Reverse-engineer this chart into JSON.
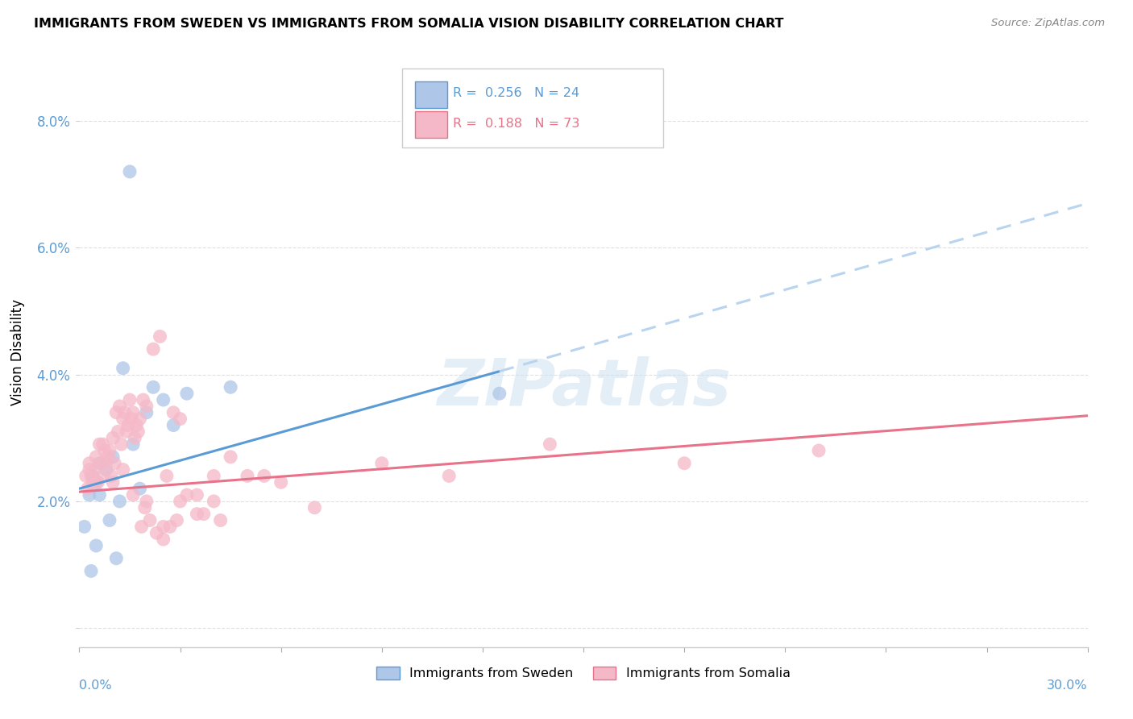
{
  "title": "IMMIGRANTS FROM SWEDEN VS IMMIGRANTS FROM SOMALIA VISION DISABILITY CORRELATION CHART",
  "source": "Source: ZipAtlas.com",
  "ylabel": "Vision Disability",
  "xlim": [
    0.0,
    30.0
  ],
  "ylim": [
    -0.3,
    9.0
  ],
  "yticks": [
    0.0,
    2.0,
    4.0,
    6.0,
    8.0
  ],
  "background_color": "#ffffff",
  "grid_color": "#e0e0e0",
  "sweden_color": "#aec6e8",
  "somalia_color": "#f5b8c8",
  "sweden_line_color": "#5b9bd5",
  "somalia_line_color": "#e8728a",
  "trend_dashed_color": "#b8d4ee",
  "watermark": "ZIPatlas",
  "sweden_x": [
    1.5,
    2.2,
    3.2,
    2.0,
    1.3,
    0.6,
    0.4,
    0.3,
    0.5,
    0.8,
    1.0,
    1.2,
    1.8,
    2.5,
    2.8,
    4.5,
    12.5,
    0.15,
    0.35,
    0.6,
    0.9,
    1.6,
    0.5,
    1.1
  ],
  "sweden_y": [
    7.2,
    3.8,
    3.7,
    3.4,
    4.1,
    2.6,
    2.4,
    2.1,
    2.3,
    2.5,
    2.7,
    2.0,
    2.2,
    3.6,
    3.2,
    3.8,
    3.7,
    1.6,
    0.9,
    2.1,
    1.7,
    2.9,
    1.3,
    1.1
  ],
  "somalia_x": [
    0.2,
    0.3,
    0.4,
    0.5,
    0.6,
    0.7,
    0.8,
    0.9,
    1.0,
    1.1,
    1.2,
    1.3,
    1.4,
    1.5,
    1.6,
    1.7,
    1.8,
    1.9,
    2.0,
    2.2,
    2.4,
    2.6,
    2.8,
    3.0,
    3.5,
    4.0,
    4.5,
    5.5,
    7.0,
    9.0,
    11.0,
    14.0,
    18.0,
    22.0,
    0.25,
    0.35,
    0.45,
    0.55,
    0.65,
    0.75,
    0.85,
    0.95,
    1.05,
    1.15,
    1.25,
    1.35,
    1.45,
    1.55,
    1.65,
    1.75,
    1.85,
    1.95,
    2.1,
    2.3,
    2.5,
    2.7,
    2.9,
    3.2,
    3.7,
    4.2,
    0.3,
    0.5,
    0.7,
    1.0,
    1.3,
    1.6,
    2.0,
    2.5,
    3.0,
    3.5,
    4.0,
    5.0,
    6.0
  ],
  "somalia_y": [
    2.4,
    2.6,
    2.3,
    2.7,
    2.9,
    2.4,
    2.6,
    2.8,
    2.3,
    3.4,
    3.5,
    3.3,
    3.1,
    3.6,
    3.4,
    3.2,
    3.3,
    3.6,
    3.5,
    4.4,
    4.6,
    2.4,
    3.4,
    3.3,
    2.1,
    2.4,
    2.7,
    2.4,
    1.9,
    2.6,
    2.4,
    2.9,
    2.6,
    2.8,
    2.2,
    2.4,
    2.5,
    2.3,
    2.6,
    2.8,
    2.7,
    2.4,
    2.6,
    3.1,
    2.9,
    3.4,
    3.2,
    3.3,
    3.0,
    3.1,
    1.6,
    1.9,
    1.7,
    1.5,
    1.4,
    1.6,
    1.7,
    2.1,
    1.8,
    1.7,
    2.5,
    2.3,
    2.9,
    3.0,
    2.5,
    2.1,
    2.0,
    1.6,
    2.0,
    1.8,
    2.0,
    2.4,
    2.3
  ],
  "legend_r1": "0.256",
  "legend_n1": "24",
  "legend_r2": "0.188",
  "legend_n2": "73",
  "sweden_trend_x0": 0.0,
  "sweden_trend_y0": 2.2,
  "sweden_trend_x1": 12.5,
  "sweden_trend_y1": 4.05,
  "sweden_dash_x0": 12.5,
  "sweden_dash_y0": 4.05,
  "sweden_dash_x1": 30.0,
  "sweden_dash_y1": 6.7,
  "somalia_trend_x0": 0.0,
  "somalia_trend_y0": 2.15,
  "somalia_trend_x1": 30.0,
  "somalia_trend_y1": 3.35
}
